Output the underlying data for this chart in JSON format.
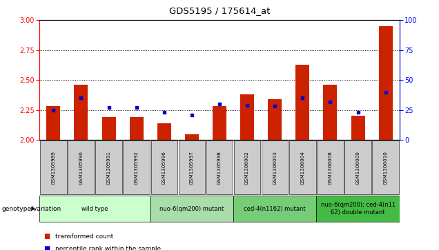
{
  "title": "GDS5195 / 175614_at",
  "samples": [
    "GSM1305989",
    "GSM1305990",
    "GSM1305991",
    "GSM1305992",
    "GSM1305996",
    "GSM1305997",
    "GSM1305998",
    "GSM1306002",
    "GSM1306003",
    "GSM1306004",
    "GSM1306008",
    "GSM1306009",
    "GSM1306010"
  ],
  "transformed_count": [
    2.28,
    2.46,
    2.19,
    2.19,
    2.14,
    2.05,
    2.28,
    2.38,
    2.34,
    2.63,
    2.46,
    2.2,
    2.95
  ],
  "percentile_rank": [
    25,
    35,
    27,
    27,
    23,
    21,
    30,
    29,
    28,
    35,
    32,
    23,
    40
  ],
  "ylim_left": [
    2.0,
    3.0
  ],
  "ylim_right": [
    0,
    100
  ],
  "yticks_left": [
    2.0,
    2.25,
    2.5,
    2.75,
    3.0
  ],
  "yticks_right": [
    0,
    25,
    50,
    75,
    100
  ],
  "hlines": [
    2.25,
    2.5,
    2.75
  ],
  "bar_color": "#cc2200",
  "dot_color": "#0000cc",
  "groups": [
    {
      "label": "wild type",
      "start": 0,
      "end": 3,
      "color": "#ccffcc"
    },
    {
      "label": "nuo-6(qm200) mutant",
      "start": 4,
      "end": 6,
      "color": "#aaddaa"
    },
    {
      "label": "ced-4(n1162) mutant",
      "start": 7,
      "end": 9,
      "color": "#77cc77"
    },
    {
      "label": "nuo-6(qm200); ced-4(n11\n62) double mutant",
      "start": 10,
      "end": 12,
      "color": "#44bb44"
    }
  ],
  "tick_bg_color": "#cccccc",
  "legend_items": [
    {
      "label": "transformed count",
      "color": "#cc2200"
    },
    {
      "label": "percentile rank within the sample",
      "color": "#0000cc"
    }
  ],
  "genotype_label": "genotype/variation",
  "background_color": "#ffffff"
}
